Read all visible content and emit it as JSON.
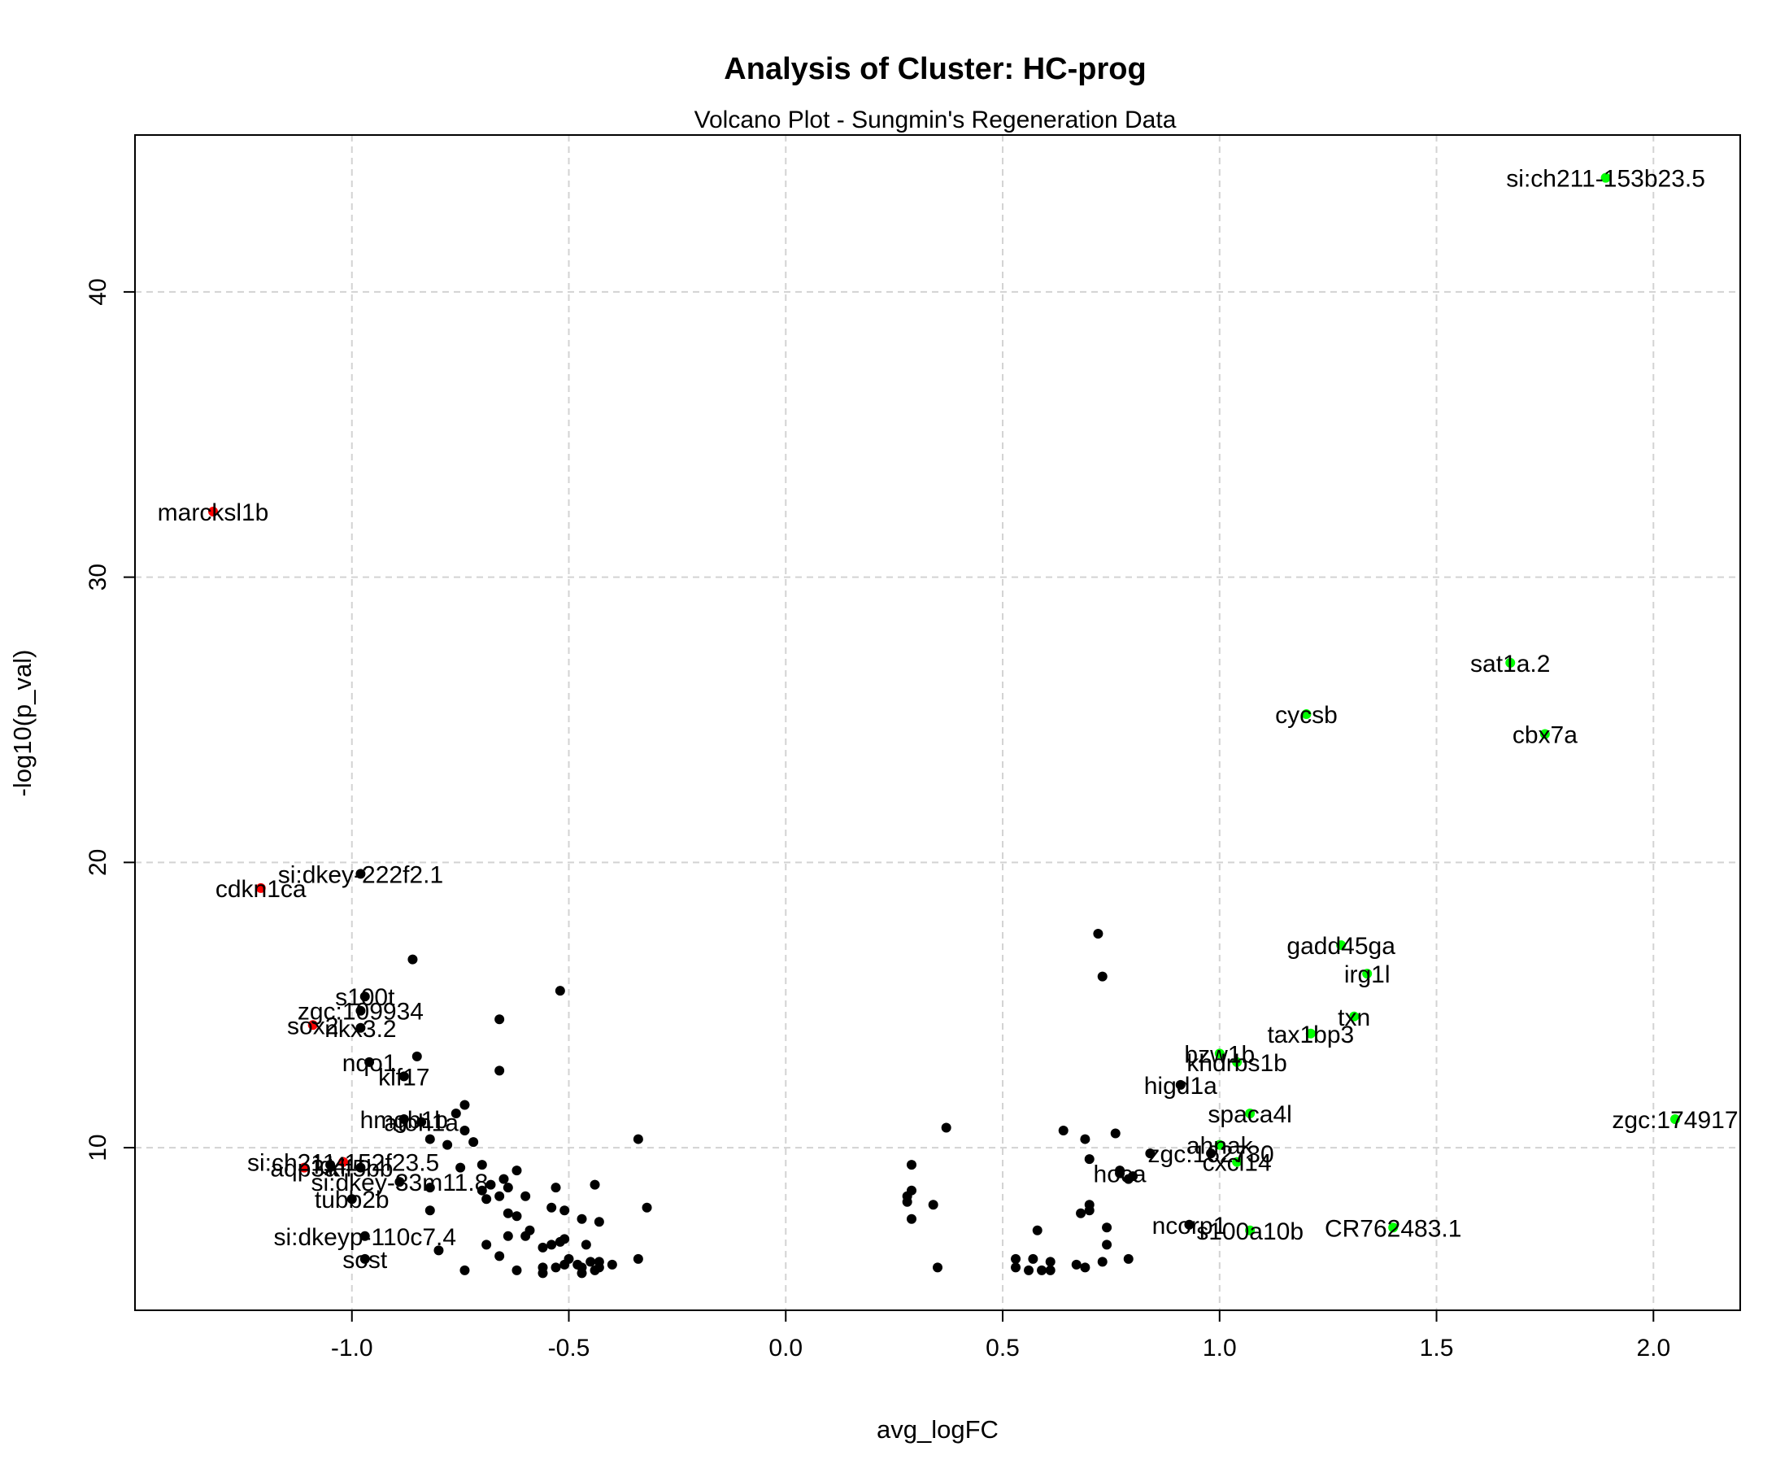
{
  "chart_data": {
    "type": "scatter",
    "title": "Analysis of Cluster: HC-prog",
    "subtitle": "Volcano Plot - Sungmin's Regeneration Data",
    "xlabel": "avg_logFC",
    "ylabel": "-log10(p_val)",
    "xlim": [
      -1.5,
      2.2
    ],
    "ylim": [
      4.3,
      45.5
    ],
    "xticks": [
      -1.0,
      -0.5,
      0.0,
      0.5,
      1.0,
      1.5,
      2.0
    ],
    "xtick_labels": [
      "-1.0",
      "-0.5",
      "0.0",
      "0.5",
      "1.0",
      "1.5",
      "2.0"
    ],
    "yticks": [
      10,
      20,
      30,
      40
    ],
    "ytick_labels": [
      "10",
      "20",
      "30",
      "40"
    ],
    "grid": true,
    "colors": {
      "down": "#ff0000",
      "up": "#00ff00",
      "other": "#000000"
    },
    "labeled_points": [
      {
        "label": "si:ch211-153b23.5",
        "x": 1.89,
        "y": 44.0,
        "group": "up"
      },
      {
        "label": "sat1a.2",
        "x": 1.67,
        "y": 27.0,
        "group": "up"
      },
      {
        "label": "cycsb",
        "x": 1.2,
        "y": 25.2,
        "group": "up"
      },
      {
        "label": "cbx7a",
        "x": 1.75,
        "y": 24.5,
        "group": "up"
      },
      {
        "label": "gadd45ga",
        "x": 1.28,
        "y": 17.1,
        "group": "up"
      },
      {
        "label": "irg1l",
        "x": 1.34,
        "y": 16.1,
        "group": "up"
      },
      {
        "label": "txn",
        "x": 1.31,
        "y": 14.6,
        "group": "up"
      },
      {
        "label": "tax1bp3",
        "x": 1.21,
        "y": 14.0,
        "group": "up"
      },
      {
        "label": "bzw1b",
        "x": 1.0,
        "y": 13.3,
        "group": "up"
      },
      {
        "label": "khdrbs1b",
        "x": 1.04,
        "y": 13.0,
        "group": "up"
      },
      {
        "label": "higd1a",
        "x": 0.91,
        "y": 12.2,
        "group": "other"
      },
      {
        "label": "zgc:174917",
        "x": 2.05,
        "y": 11.0,
        "group": "up"
      },
      {
        "label": "spaca4l",
        "x": 1.07,
        "y": 11.2,
        "group": "up"
      },
      {
        "label": "ahnak",
        "x": 1.0,
        "y": 10.1,
        "group": "up"
      },
      {
        "label": "zgc:162730",
        "x": 0.98,
        "y": 9.8,
        "group": "other"
      },
      {
        "label": "cxcl14",
        "x": 1.04,
        "y": 9.5,
        "group": "up"
      },
      {
        "label": "hoca",
        "x": 0.77,
        "y": 9.1,
        "group": "other"
      },
      {
        "label": "ncorp1",
        "x": 0.93,
        "y": 7.3,
        "group": "other"
      },
      {
        "label": "s100a10b",
        "x": 1.07,
        "y": 7.1,
        "group": "up"
      },
      {
        "label": "CR762483.1",
        "x": 1.4,
        "y": 7.2,
        "group": "up"
      },
      {
        "label": "marcksl1b",
        "x": -1.32,
        "y": 32.3,
        "group": "down"
      },
      {
        "label": "si:dkey-222f2.1",
        "x": -0.98,
        "y": 19.6,
        "group": "other"
      },
      {
        "label": "cdkn1ca",
        "x": -1.21,
        "y": 19.1,
        "group": "down"
      },
      {
        "label": "s100t",
        "x": -0.97,
        "y": 15.3,
        "group": "other"
      },
      {
        "label": "zgc:109934",
        "x": -0.98,
        "y": 14.8,
        "group": "other"
      },
      {
        "label": "sox2",
        "x": -1.09,
        "y": 14.3,
        "group": "down"
      },
      {
        "label": "nkx3.2",
        "x": -0.98,
        "y": 14.2,
        "group": "other"
      },
      {
        "label": "nqo1",
        "x": -0.96,
        "y": 13.0,
        "group": "other"
      },
      {
        "label": "klf17",
        "x": -0.88,
        "y": 12.5,
        "group": "other"
      },
      {
        "label": "hmgb1b",
        "x": -0.88,
        "y": 11.0,
        "group": "other"
      },
      {
        "label": "atoh1a",
        "x": -0.84,
        "y": 10.9,
        "group": "other"
      },
      {
        "label": "si:ch211-152f23.5",
        "x": -1.02,
        "y": 9.5,
        "group": "down"
      },
      {
        "label": "aqp3a",
        "x": -1.11,
        "y": 9.3,
        "group": "down"
      },
      {
        "label": "id4",
        "x": -1.05,
        "y": 9.4,
        "group": "other"
      },
      {
        "label": "kif5bb",
        "x": -0.98,
        "y": 9.3,
        "group": "other"
      },
      {
        "label": "si:dkey-33m11.8",
        "x": -0.89,
        "y": 8.8,
        "group": "other"
      },
      {
        "label": "tubb2b",
        "x": -1.0,
        "y": 8.2,
        "group": "other"
      },
      {
        "label": "si:dkeyp-110c7.4",
        "x": -0.97,
        "y": 6.9,
        "group": "other"
      },
      {
        "label": "sost",
        "x": -0.97,
        "y": 6.1,
        "group": "other"
      }
    ],
    "other_points": [
      [
        -0.86,
        16.6
      ],
      [
        -0.52,
        15.5
      ],
      [
        -0.66,
        14.5
      ],
      [
        -0.85,
        13.2
      ],
      [
        -0.66,
        12.7
      ],
      [
        -0.74,
        11.5
      ],
      [
        -0.76,
        11.2
      ],
      [
        -0.74,
        10.6
      ],
      [
        -0.72,
        10.2
      ],
      [
        -0.78,
        10.1
      ],
      [
        -0.82,
        10.3
      ],
      [
        -0.34,
        10.3
      ],
      [
        -0.7,
        9.4
      ],
      [
        -0.75,
        9.3
      ],
      [
        -0.62,
        9.2
      ],
      [
        -0.65,
        8.9
      ],
      [
        -0.68,
        8.7
      ],
      [
        -0.64,
        8.6
      ],
      [
        -0.7,
        8.5
      ],
      [
        -0.82,
        8.6
      ],
      [
        -0.53,
        8.6
      ],
      [
        -0.44,
        8.7
      ],
      [
        -0.66,
        8.3
      ],
      [
        -0.69,
        8.2
      ],
      [
        -0.6,
        8.3
      ],
      [
        -0.51,
        7.8
      ],
      [
        -0.54,
        7.9
      ],
      [
        -0.47,
        7.5
      ],
      [
        -0.43,
        7.4
      ],
      [
        -0.32,
        7.9
      ],
      [
        -0.82,
        7.8
      ],
      [
        -0.64,
        7.7
      ],
      [
        -0.62,
        7.6
      ],
      [
        -0.59,
        7.1
      ],
      [
        -0.6,
        6.9
      ],
      [
        -0.64,
        6.9
      ],
      [
        -0.51,
        6.8
      ],
      [
        -0.52,
        6.7
      ],
      [
        -0.54,
        6.6
      ],
      [
        -0.56,
        6.5
      ],
      [
        -0.46,
        6.6
      ],
      [
        -0.69,
        6.6
      ],
      [
        -0.8,
        6.4
      ],
      [
        -0.66,
        6.2
      ],
      [
        -0.5,
        6.1
      ],
      [
        -0.34,
        6.1
      ],
      [
        -0.45,
        6.0
      ],
      [
        -0.43,
        6.0
      ],
      [
        -0.48,
        5.9
      ],
      [
        -0.51,
        5.9
      ],
      [
        -0.4,
        5.9
      ],
      [
        -0.43,
        5.8
      ],
      [
        -0.47,
        5.8
      ],
      [
        -0.53,
        5.8
      ],
      [
        -0.56,
        5.8
      ],
      [
        -0.44,
        5.7
      ],
      [
        -0.47,
        5.6
      ],
      [
        -0.56,
        5.6
      ],
      [
        -0.62,
        5.7
      ],
      [
        -0.74,
        5.7
      ],
      [
        0.72,
        17.5
      ],
      [
        0.73,
        16.0
      ],
      [
        0.37,
        10.7
      ],
      [
        0.64,
        10.6
      ],
      [
        0.76,
        10.5
      ],
      [
        0.69,
        10.3
      ],
      [
        0.84,
        9.8
      ],
      [
        0.7,
        9.6
      ],
      [
        0.29,
        9.4
      ],
      [
        0.77,
        9.2
      ],
      [
        0.8,
        9.0
      ],
      [
        0.79,
        8.9
      ],
      [
        0.29,
        8.5
      ],
      [
        0.28,
        8.3
      ],
      [
        0.28,
        8.1
      ],
      [
        0.34,
        8.0
      ],
      [
        0.7,
        8.0
      ],
      [
        0.7,
        7.8
      ],
      [
        0.68,
        7.7
      ],
      [
        0.29,
        7.5
      ],
      [
        0.74,
        7.2
      ],
      [
        0.58,
        7.1
      ],
      [
        0.74,
        6.6
      ],
      [
        0.53,
        6.1
      ],
      [
        0.57,
        6.1
      ],
      [
        0.73,
        6.0
      ],
      [
        0.79,
        6.1
      ],
      [
        0.61,
        6.0
      ],
      [
        0.67,
        5.9
      ],
      [
        0.35,
        5.8
      ],
      [
        0.53,
        5.8
      ],
      [
        0.56,
        5.7
      ],
      [
        0.59,
        5.7
      ],
      [
        0.61,
        5.7
      ],
      [
        0.69,
        5.8
      ]
    ]
  }
}
